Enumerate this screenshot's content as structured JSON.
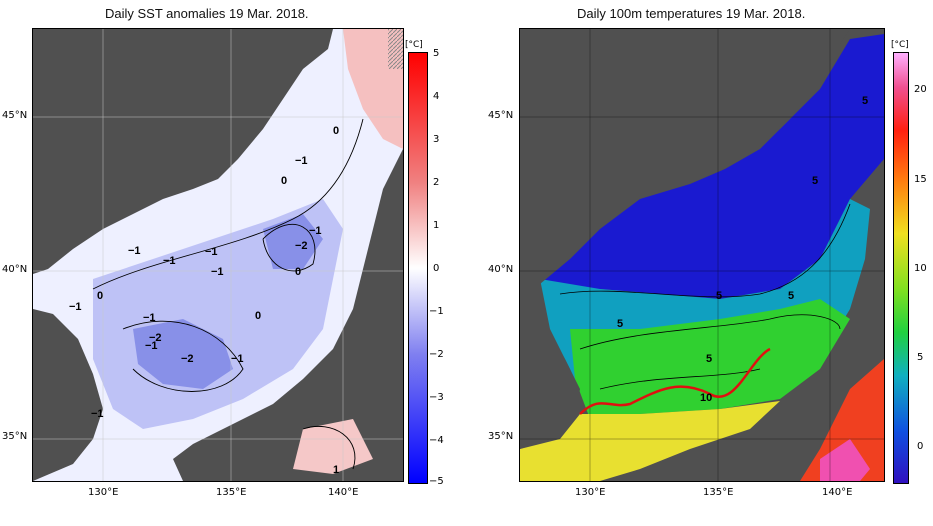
{
  "left_panel": {
    "title": "Daily SST anomalies 19 Mar. 2018.",
    "unit": "[°C]",
    "colorbar_ticks": [
      "5",
      "4",
      "3",
      "2",
      "1",
      "0",
      "−1",
      "−2",
      "−3",
      "−4",
      "−5"
    ],
    "colors": {
      "neg": "#3030f0",
      "zero": "#ffffff",
      "pos": "#f02020",
      "land": "#505050"
    },
    "contour_labels": [
      "−1",
      "0",
      "−1",
      "−1",
      "−1",
      "−2",
      "−1",
      "−1",
      "0",
      "−1",
      "0",
      "−1",
      "−2",
      "−2",
      "−1",
      "0",
      "0",
      "−1",
      "−1",
      "1"
    ]
  },
  "right_panel": {
    "title": "Daily 100m temperatures 19 Mar. 2018.",
    "unit": "[°C]",
    "colorbar_ticks": [
      "20",
      "15",
      "10",
      "5",
      "0"
    ],
    "colors": {
      "cold": "#1010c0",
      "mid": "#20d020",
      "warm": "#f0e020",
      "hot": "#f03010",
      "front": "#e01010"
    },
    "contour_labels": [
      "5",
      "5",
      "5",
      "5",
      "5",
      "5",
      "10"
    ]
  },
  "axes": {
    "lat_labels": [
      "45°N",
      "40°N",
      "35°N"
    ],
    "lon_labels": [
      "130°E",
      "135°E",
      "140°E"
    ]
  }
}
